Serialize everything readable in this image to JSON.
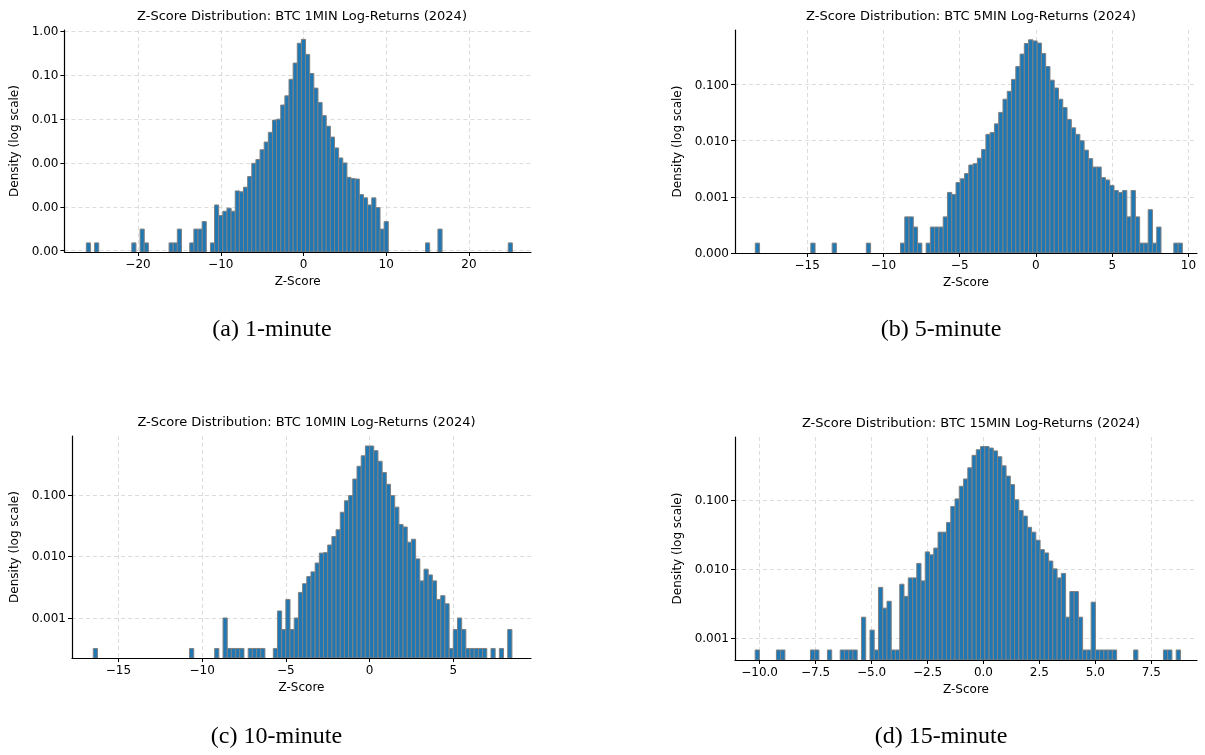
{
  "chart_data": [
    {
      "type": "histogram",
      "title": "Z-Score Distribution: BTC 1MIN Log-Returns (2024)",
      "xlabel": "Z-Score",
      "ylabel": "Density (log scale)",
      "color": "#1f77b4",
      "log": true,
      "grid": true,
      "xlim": [
        -28.9,
        27.5
      ],
      "ylim": [
        9.3e-06,
        1.08
      ],
      "xticks": [
        {
          "value": -20,
          "label": "−20"
        },
        {
          "value": -10,
          "label": "−10"
        },
        0,
        10,
        20
      ],
      "yticks": [
        {
          "value": 1,
          "label": "1.00"
        },
        {
          "value": 0.1,
          "label": "0.10"
        },
        {
          "value": 0.01,
          "label": "0.01"
        },
        {
          "value": 0.001,
          "label": "0.00"
        },
        {
          "value": 0.0001,
          "label": "0.00"
        },
        {
          "value": 1e-05,
          "label": "0.00"
        }
      ],
      "bins": [
        -26.25,
        -25.75,
        -25.25,
        -24.75,
        -24.25,
        -23.75,
        -23.25,
        -22.75,
        -22.25,
        -21.75,
        -21.25,
        -20.75,
        -20.25,
        -19.75,
        -19.25,
        -18.75,
        -18.25,
        -17.75,
        -17.25,
        -16.75,
        -16.25,
        -15.75,
        -15.25,
        -14.75,
        -14.25,
        -13.75,
        -13.25,
        -12.75,
        -12.25,
        -11.75,
        -11.25,
        -10.75,
        -10.25,
        -9.75,
        -9.25,
        -8.75,
        -8.25,
        -7.75,
        -7.25,
        -6.75,
        -6.25,
        -5.75,
        -5.25,
        -4.75,
        -4.25,
        -3.75,
        -3.25,
        -2.75,
        -2.25,
        -1.75,
        -1.25,
        -0.75,
        -0.25,
        0.25,
        0.75,
        1.25,
        1.75,
        2.25,
        2.75,
        3.25,
        3.75,
        4.25,
        4.75,
        5.25,
        5.75,
        6.25,
        6.75,
        7.25,
        7.75,
        8.25,
        8.75,
        9.25,
        9.75,
        10.25,
        10.75,
        11.25,
        11.75,
        12.25,
        12.75,
        13.25,
        13.75,
        14.25,
        14.75,
        15.25,
        15.75,
        16.25,
        16.75,
        17.25,
        17.75,
        18.25,
        18.75,
        19.25,
        19.75,
        20.25,
        20.75,
        21.25,
        21.75,
        22.25,
        22.75,
        23.25,
        23.75,
        24.25,
        24.75,
        25.25
      ],
      "values": [
        1.5e-05,
        null,
        1.5e-05,
        null,
        null,
        null,
        null,
        null,
        null,
        null,
        null,
        1.5e-05,
        null,
        3.1e-05,
        1.5e-05,
        null,
        null,
        null,
        null,
        null,
        1.5e-05,
        1.5e-05,
        3.1e-05,
        null,
        null,
        1.5e-05,
        3.1e-05,
        3.1e-05,
        4.6e-05,
        null,
        1.5e-05,
        0.00011,
        6.3e-05,
        7.9e-05,
        9.3e-05,
        7.9e-05,
        0.00023,
        0.00022,
        0.00028,
        0.00049,
        0.00098,
        0.0012,
        0.002,
        0.003,
        0.005,
        0.0095,
        0.01,
        0.021,
        0.034,
        0.081,
        0.19,
        0.54,
        0.66,
        0.3,
        0.11,
        0.051,
        0.024,
        0.012,
        0.0069,
        0.0039,
        0.0022,
        0.0013,
        0.001,
        0.00047,
        0.00044,
        0.00043,
        0.00019,
        0.00016,
        0.00011,
        0.00016,
        9.6e-05,
        3.1e-05,
        4.6e-05,
        null,
        null,
        null,
        null,
        null,
        null,
        null,
        null,
        null,
        1.5e-05,
        null,
        null,
        3.1e-05,
        null,
        null,
        null,
        null,
        null,
        null,
        null,
        null,
        null,
        null,
        null,
        null,
        null,
        null,
        null,
        null,
        1.5e-05
      ],
      "annotations": [
        "(a) 1-minute"
      ]
    },
    {
      "type": "histogram",
      "title": "Z-Score Distribution: BTC 5MIN Log-Returns (2024)",
      "xlabel": "Z-Score",
      "ylabel": "Density (log scale)",
      "color": "#1f77b4",
      "log": true,
      "grid": true,
      "xlim": [
        -19.73,
        10.56
      ],
      "ylim": [
        0.0001,
        0.94
      ],
      "xticks": [
        {
          "value": -15,
          "label": "−15"
        },
        {
          "value": -10,
          "label": "−10"
        },
        {
          "value": -5,
          "label": "−5"
        },
        0,
        5,
        10
      ],
      "yticks": [
        {
          "value": 0.1,
          "label": "0.100"
        },
        {
          "value": 0.01,
          "label": "0.010"
        },
        {
          "value": 0.001,
          "label": "0.001"
        },
        {
          "value": 0.0001,
          "label": "0.000"
        }
      ],
      "bins": [
        -18.4,
        -18.12,
        -17.84,
        -17.56,
        -17.28,
        -17,
        -16.72,
        -16.44,
        -16.16,
        -15.88,
        -15.6,
        -15.32,
        -15.04,
        -14.76,
        -14.48,
        -14.2,
        -13.92,
        -13.64,
        -13.36,
        -13.08,
        -12.8,
        -12.52,
        -12.24,
        -11.96,
        -11.68,
        -11.4,
        -11.12,
        -10.84,
        -10.56,
        -10.28,
        -10,
        -9.72,
        -9.44,
        -9.16,
        -8.88,
        -8.6,
        -8.32,
        -8.04,
        -7.76,
        -7.48,
        -7.2,
        -6.92,
        -6.64,
        -6.36,
        -6.08,
        -5.8,
        -5.52,
        -5.24,
        -4.96,
        -4.68,
        -4.4,
        -4.12,
        -3.84,
        -3.56,
        -3.28,
        -3,
        -2.72,
        -2.44,
        -2.16,
        -1.88,
        -1.6,
        -1.32,
        -1.04,
        -0.76,
        -0.48,
        -0.2,
        0.08,
        0.36,
        0.64,
        0.92,
        1.2,
        1.48,
        1.76,
        2.04,
        2.32,
        2.6,
        2.88,
        3.16,
        3.44,
        3.72,
        4,
        4.28,
        4.56,
        4.84,
        5.12,
        5.4,
        5.68,
        5.96,
        6.24,
        6.52,
        6.8,
        7.08,
        7.36,
        7.64,
        7.92,
        8.2,
        8.48,
        8.76,
        9.04,
        9.32,
        9.6
      ],
      "values": [
        0.00015,
        null,
        null,
        null,
        null,
        null,
        null,
        null,
        null,
        null,
        null,
        null,
        null,
        0.00015,
        null,
        null,
        null,
        null,
        0.00015,
        null,
        null,
        null,
        null,
        null,
        null,
        null,
        0.00015,
        null,
        null,
        null,
        null,
        null,
        null,
        null,
        0.00015,
        0.00044,
        0.00044,
        0.00029,
        0.00015,
        null,
        0.00015,
        0.00029,
        0.00029,
        0.00029,
        0.00044,
        0.0012,
        0.0011,
        0.0018,
        0.0021,
        0.0026,
        0.0037,
        0.0039,
        0.0049,
        0.007,
        0.013,
        0.014,
        0.02,
        0.032,
        0.055,
        0.076,
        0.124,
        0.21,
        0.35,
        0.54,
        0.63,
        0.6,
        0.55,
        0.36,
        0.21,
        0.12,
        0.087,
        0.055,
        0.039,
        0.024,
        0.017,
        0.013,
        0.01,
        0.0068,
        0.0048,
        0.0034,
        0.0034,
        0.0022,
        0.002,
        0.0016,
        0.0013,
        0.0012,
        0.0013,
        0.00044,
        0.0013,
        0.00044,
        0.00015,
        0.00015,
        0.00059,
        0.00015,
        0.00029,
        null,
        null,
        null,
        0.00015,
        0.00015
      ],
      "annotations": [
        "(b) 5-minute"
      ]
    },
    {
      "type": "histogram",
      "title": "Z-Score Distribution: BTC 10MIN Log-Returns (2024)",
      "xlabel": "Z-Score",
      "ylabel": "Density (log scale)",
      "color": "#1f77b4",
      "log": true,
      "grid": true,
      "xlim": [
        -17.77,
        9.64
      ],
      "ylim": [
        0.000224,
        0.9
      ],
      "xticks": [
        {
          "value": -15,
          "label": "−15"
        },
        {
          "value": -10,
          "label": "−10"
        },
        {
          "value": -5,
          "label": "−5"
        },
        0,
        5
      ],
      "yticks": [
        {
          "value": 0.1,
          "label": "0.100"
        },
        {
          "value": 0.01,
          "label": "0.010"
        },
        {
          "value": 0.001,
          "label": "0.001"
        }
      ],
      "bins": [
        -16.5,
        -16.25,
        -16,
        -15.75,
        -15.5,
        -15.25,
        -15,
        -14.75,
        -14.5,
        -14.25,
        -14,
        -13.75,
        -13.5,
        -13.25,
        -13,
        -12.75,
        -12.5,
        -12.25,
        -12,
        -11.75,
        -11.5,
        -11.25,
        -11,
        -10.75,
        -10.5,
        -10.25,
        -10,
        -9.75,
        -9.5,
        -9.25,
        -9,
        -8.75,
        -8.5,
        -8.25,
        -8,
        -7.75,
        -7.5,
        -7.25,
        -7,
        -6.75,
        -6.5,
        -6.25,
        -6,
        -5.75,
        -5.5,
        -5.25,
        -5,
        -4.75,
        -4.5,
        -4.25,
        -4,
        -3.75,
        -3.5,
        -3.25,
        -3,
        -2.75,
        -2.5,
        -2.25,
        -2,
        -1.75,
        -1.5,
        -1.25,
        -1,
        -0.75,
        -0.5,
        -0.25,
        0,
        0.25,
        0.5,
        0.75,
        1,
        1.25,
        1.5,
        1.75,
        2,
        2.25,
        2.5,
        2.75,
        3,
        3.25,
        3.5,
        3.75,
        4,
        4.25,
        4.5,
        4.75,
        5,
        5.25,
        5.5,
        5.75,
        6,
        6.25,
        6.5,
        6.75,
        7,
        7.25,
        7.5,
        7.75,
        8,
        8.25,
        8.5
      ],
      "values": [
        0.00032,
        null,
        null,
        null,
        null,
        null,
        null,
        null,
        null,
        null,
        null,
        null,
        null,
        null,
        null,
        null,
        null,
        null,
        null,
        null,
        null,
        null,
        null,
        0.00032,
        null,
        null,
        null,
        null,
        null,
        0.00032,
        null,
        0.001,
        0.00032,
        0.00032,
        0.00032,
        0.00032,
        null,
        0.00032,
        0.00032,
        0.00032,
        0.00032,
        null,
        null,
        0.00032,
        0.0013,
        0.00065,
        0.002,
        0.00065,
        0.001,
        0.0026,
        0.0036,
        0.0047,
        0.0056,
        0.0078,
        0.0113,
        0.0115,
        0.0153,
        0.021,
        0.027,
        0.052,
        0.08,
        0.097,
        0.18,
        0.29,
        0.43,
        0.62,
        0.62,
        0.52,
        0.35,
        0.23,
        0.148,
        0.097,
        0.063,
        0.033,
        0.03,
        0.017,
        0.019,
        0.0091,
        0.004,
        0.0062,
        0.005,
        0.004,
        0.002,
        0.0023,
        0.0017,
        0.00032,
        0.00065,
        0.001,
        0.00065,
        0.00032,
        0.00032,
        0.00032,
        0.00032,
        0.00032,
        null,
        0.00032,
        null,
        0.00032,
        null,
        0.00065
      ],
      "annotations": [
        "(c) 10-minute"
      ]
    },
    {
      "type": "histogram",
      "title": "Z-Score Distribution: BTC 15MIN Log-Returns (2024)",
      "xlabel": "Z-Score",
      "ylabel": "Density (log scale)",
      "color": "#1f77b4",
      "log": true,
      "grid": true,
      "xlim": [
        -11.1,
        9.54
      ],
      "ylim": [
        0.00048,
        0.81
      ],
      "xticks": [
        {
          "value": -10,
          "label": "−10.0"
        },
        {
          "value": -7.5,
          "label": "−7.5"
        },
        {
          "value": -5,
          "label": "−5.0"
        },
        {
          "value": -2.5,
          "label": "−2.5"
        },
        {
          "value": 0,
          "label": "0.0"
        },
        2.5,
        {
          "value": 5,
          "label": "5.0"
        },
        7.5
      ],
      "yticks": [
        {
          "value": 0.1,
          "label": "0.100"
        },
        {
          "value": 0.01,
          "label": "0.010"
        },
        {
          "value": 0.001,
          "label": "0.001"
        }
      ],
      "bins": [
        -10.2,
        -10.01,
        -9.82,
        -9.63,
        -9.44,
        -9.25,
        -9.06,
        -8.87,
        -8.68,
        -8.49,
        -8.3,
        -8.11,
        -7.92,
        -7.73,
        -7.54,
        -7.35,
        -7.16,
        -6.97,
        -6.78,
        -6.59,
        -6.4,
        -6.21,
        -6.02,
        -5.83,
        -5.64,
        -5.45,
        -5.26,
        -5.07,
        -4.88,
        -4.69,
        -4.5,
        -4.31,
        -4.12,
        -3.93,
        -3.74,
        -3.55,
        -3.36,
        -3.17,
        -2.98,
        -2.79,
        -2.6,
        -2.41,
        -2.22,
        -2.03,
        -1.84,
        -1.65,
        -1.46,
        -1.27,
        -1.08,
        -0.89,
        -0.7,
        -0.51,
        -0.32,
        -0.13,
        0.06,
        0.25,
        0.44,
        0.63,
        0.82,
        1.01,
        1.2,
        1.39,
        1.58,
        1.77,
        1.96,
        2.15,
        2.34,
        2.53,
        2.72,
        2.91,
        3.1,
        3.29,
        3.48,
        3.67,
        3.86,
        4.05,
        4.24,
        4.43,
        4.62,
        4.81,
        5,
        5.19,
        5.38,
        5.57,
        5.76,
        5.95,
        6.14,
        6.33,
        6.52,
        6.71,
        6.9,
        7.09,
        7.28,
        7.47,
        7.66,
        7.85,
        8.04,
        8.23,
        8.42,
        8.61,
        8.8
      ],
      "values": [
        0.00067,
        null,
        null,
        null,
        null,
        0.00067,
        0.00067,
        null,
        null,
        null,
        null,
        null,
        null,
        0.00067,
        0.00067,
        null,
        null,
        0.00067,
        null,
        null,
        0.00067,
        0.00067,
        0.00067,
        0.00067,
        null,
        0.002,
        null,
        0.0013,
        0.00067,
        0.0054,
        0.0027,
        0.0034,
        0.00067,
        0.00067,
        0.006,
        0.004,
        0.0074,
        0.0074,
        0.012,
        0.0067,
        0.0176,
        0.016,
        0.02,
        0.034,
        0.034,
        0.047,
        0.08,
        0.103,
        0.157,
        0.2,
        0.29,
        0.44,
        0.53,
        0.59,
        0.59,
        0.56,
        0.51,
        0.42,
        0.31,
        0.22,
        0.166,
        0.1,
        0.07,
        0.058,
        0.04,
        0.034,
        0.026,
        0.019,
        0.017,
        0.013,
        0.01,
        0.0074,
        0.0086,
        0.002,
        0.0047,
        0.0047,
        0.002,
        0.00067,
        0.00067,
        0.0033,
        0.00067,
        0.00067,
        0.00067,
        0.00067,
        0.00067,
        null,
        null,
        null,
        null,
        0.00067,
        null,
        null,
        null,
        null,
        null,
        null,
        0.00067,
        0.00067,
        null,
        0.00067
      ],
      "annotations": [
        "(d) 15-minute"
      ]
    }
  ]
}
